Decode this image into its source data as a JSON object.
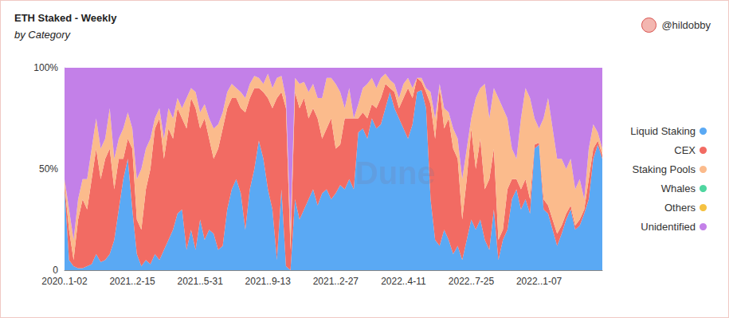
{
  "chart_data": {
    "type": "area",
    "title": "ETH Staked - Weekly",
    "subtitle": "by Category",
    "annotations": [
      "@hildobby",
      "Dune"
    ],
    "stacked": true,
    "grid": false,
    "legend": "right",
    "ylim": [
      0,
      100
    ],
    "yticks": [
      0,
      {
        "value": 50,
        "label": "50%"
      },
      {
        "value": 100,
        "label": "100%"
      }
    ],
    "categories": [
      "2020..1-02",
      null,
      null,
      null,
      null,
      null,
      null,
      null,
      null,
      null,
      null,
      null,
      null,
      null,
      null,
      "2021..2-15",
      null,
      null,
      null,
      null,
      null,
      null,
      null,
      null,
      null,
      null,
      null,
      null,
      null,
      null,
      "2021..5-31",
      null,
      null,
      null,
      null,
      null,
      null,
      null,
      null,
      null,
      null,
      null,
      null,
      null,
      null,
      "2021..9-13",
      null,
      null,
      null,
      null,
      null,
      null,
      null,
      null,
      null,
      null,
      null,
      null,
      null,
      null,
      "2021..2-27",
      null,
      null,
      null,
      null,
      null,
      null,
      null,
      null,
      null,
      null,
      null,
      null,
      null,
      null,
      "2022..4-11",
      null,
      null,
      null,
      null,
      null,
      null,
      null,
      null,
      null,
      null,
      null,
      null,
      null,
      null,
      "2022..7-25",
      null,
      null,
      null,
      null,
      null,
      null,
      null,
      null,
      null,
      null,
      null,
      null,
      null,
      null,
      "2022..1-07",
      null,
      null,
      null,
      null,
      null,
      null,
      null,
      null,
      null,
      null,
      null,
      null,
      null,
      null
    ],
    "series": [
      {
        "name": "Liquid Staking",
        "color": "#5aa9f4",
        "values": [
          40,
          5,
          2,
          1,
          1,
          2,
          3,
          8,
          4,
          5,
          8,
          15,
          30,
          45,
          55,
          30,
          8,
          2,
          5,
          3,
          8,
          5,
          10,
          15,
          20,
          28,
          30,
          10,
          20,
          10,
          25,
          15,
          20,
          18,
          10,
          12,
          30,
          40,
          45,
          38,
          20,
          40,
          50,
          64,
          55,
          40,
          30,
          5,
          40,
          2,
          0,
          35,
          25,
          30,
          35,
          40,
          32,
          38,
          40,
          35,
          38,
          42,
          40,
          45,
          40,
          68,
          70,
          65,
          75,
          70,
          72,
          80,
          88,
          80,
          75,
          70,
          65,
          72,
          88,
          89,
          80,
          35,
          15,
          12,
          20,
          15,
          8,
          12,
          5,
          15,
          25,
          20,
          25,
          15,
          10,
          30,
          5,
          15,
          20,
          35,
          40,
          30,
          35,
          28,
          60,
          62,
          30,
          28,
          20,
          12,
          18,
          25,
          30,
          20,
          22,
          28,
          35,
          55,
          62,
          55
        ]
      },
      {
        "name": "CEX",
        "color": "#f26b63",
        "values": [
          2,
          15,
          3,
          24,
          34,
          28,
          42,
          52,
          41,
          50,
          52,
          25,
          25,
          10,
          10,
          30,
          17,
          18,
          35,
          47,
          62,
          70,
          45,
          55,
          45,
          52,
          45,
          60,
          65,
          70,
          45,
          60,
          45,
          37,
          50,
          58,
          50,
          45,
          40,
          42,
          58,
          45,
          40,
          26,
          33,
          45,
          50,
          80,
          48,
          78,
          10,
          53,
          55,
          55,
          40,
          40,
          43,
          27,
          30,
          40,
          22,
          20,
          35,
          30,
          35,
          7,
          8,
          10,
          7,
          10,
          13,
          12,
          2,
          8,
          5,
          15,
          25,
          13,
          7,
          4,
          8,
          47,
          50,
          78,
          50,
          60,
          52,
          43,
          20,
          30,
          45,
          30,
          40,
          25,
          35,
          30,
          10,
          5,
          20,
          10,
          5,
          10,
          10,
          7,
          2,
          1,
          5,
          4,
          5,
          6,
          4,
          3,
          2,
          2,
          3,
          2,
          10,
          5,
          2,
          2
        ]
      },
      {
        "name": "Staking Pools",
        "color": "#fbbb8c",
        "values": [
          3,
          10,
          10,
          10,
          10,
          15,
          15,
          15,
          15,
          10,
          20,
          15,
          10,
          15,
          13,
          10,
          20,
          30,
          20,
          15,
          5,
          5,
          10,
          10,
          10,
          5,
          5,
          15,
          5,
          8,
          8,
          7,
          10,
          15,
          12,
          8,
          8,
          7,
          5,
          8,
          7,
          7,
          6,
          5,
          4,
          12,
          10,
          10,
          8,
          5,
          10,
          7,
          12,
          8,
          13,
          12,
          10,
          20,
          25,
          20,
          32,
          26,
          5,
          15,
          0,
          7,
          12,
          17,
          13,
          10,
          10,
          5,
          4,
          4,
          5,
          7,
          5,
          5,
          0,
          2,
          2,
          6,
          10,
          2,
          10,
          3,
          10,
          10,
          20,
          15,
          5,
          35,
          25,
          52,
          30,
          30,
          70,
          60,
          35,
          15,
          10,
          35,
          45,
          50,
          13,
          7,
          40,
          53,
          45,
          37,
          33,
          22,
          23,
          18,
          20,
          5,
          15,
          12,
          4,
          3
        ]
      },
      {
        "name": "Whales",
        "color": "#4fd6a0",
        "values": [
          0,
          0,
          0,
          0,
          0,
          0,
          0,
          0,
          0,
          0,
          0,
          0,
          0,
          0,
          0,
          0,
          0,
          0,
          0,
          0,
          0,
          0,
          0,
          0,
          0,
          0,
          0,
          0,
          0,
          0,
          0,
          0,
          0,
          0,
          0,
          0,
          0,
          0,
          0,
          0,
          0,
          0,
          0,
          0,
          0,
          0,
          0,
          0,
          0,
          0,
          0,
          0,
          0,
          0,
          0,
          0,
          0,
          0,
          0,
          0,
          0,
          0,
          0,
          0,
          0,
          0,
          0,
          0,
          0,
          0,
          0,
          0,
          0,
          0,
          0,
          0,
          0,
          0,
          0,
          0,
          0,
          0,
          0,
          0,
          0,
          0,
          0,
          0,
          0,
          0,
          0,
          0,
          0,
          0,
          0,
          0,
          0,
          0,
          0,
          0,
          0,
          0,
          0,
          0,
          0,
          0,
          0,
          0,
          0,
          0,
          0,
          0,
          0,
          0,
          0,
          0,
          0,
          0,
          0,
          0
        ]
      },
      {
        "name": "Others",
        "color": "#f5c242",
        "values": [
          0,
          0,
          0,
          0,
          0,
          0,
          0,
          0,
          0,
          0,
          0,
          0,
          0,
          0,
          0,
          0,
          0,
          0,
          0,
          0,
          0,
          0,
          0,
          0,
          0,
          0,
          0,
          0,
          0,
          0,
          0,
          0,
          0,
          0,
          0,
          0,
          0,
          0,
          0,
          0,
          0,
          0,
          0,
          0,
          0,
          0,
          0,
          0,
          0,
          0,
          0,
          0,
          0,
          0,
          0,
          0,
          0,
          0,
          0,
          0,
          0,
          0,
          0,
          0,
          0,
          0,
          0,
          0,
          0,
          0,
          0,
          0,
          0,
          0,
          0,
          0,
          0,
          0,
          0,
          0,
          0,
          0,
          0,
          0,
          0,
          0,
          0,
          0,
          0,
          0,
          0,
          0,
          0,
          0,
          0,
          0,
          0,
          0,
          0,
          0,
          0,
          0,
          0,
          0,
          0,
          0,
          0,
          0,
          0,
          0,
          0,
          0,
          0,
          0,
          0,
          0,
          0,
          0,
          0,
          0
        ]
      },
      {
        "name": "Unidentified",
        "color": "#c380e8",
        "values": [
          55,
          70,
          85,
          65,
          55,
          55,
          40,
          25,
          40,
          35,
          20,
          45,
          35,
          30,
          22,
          30,
          55,
          50,
          40,
          35,
          25,
          20,
          35,
          20,
          25,
          15,
          20,
          15,
          10,
          12,
          22,
          18,
          25,
          30,
          28,
          22,
          12,
          8,
          10,
          12,
          15,
          8,
          4,
          5,
          8,
          3,
          10,
          5,
          4,
          15,
          80,
          5,
          8,
          7,
          12,
          8,
          15,
          15,
          5,
          5,
          8,
          12,
          20,
          10,
          25,
          18,
          10,
          8,
          5,
          10,
          5,
          3,
          6,
          8,
          15,
          8,
          5,
          10,
          5,
          5,
          10,
          12,
          25,
          8,
          20,
          22,
          30,
          35,
          55,
          40,
          25,
          15,
          10,
          8,
          25,
          10,
          15,
          20,
          25,
          40,
          45,
          25,
          10,
          15,
          25,
          30,
          25,
          15,
          30,
          45,
          45,
          50,
          45,
          60,
          55,
          65,
          40,
          28,
          32,
          40
        ]
      }
    ]
  }
}
